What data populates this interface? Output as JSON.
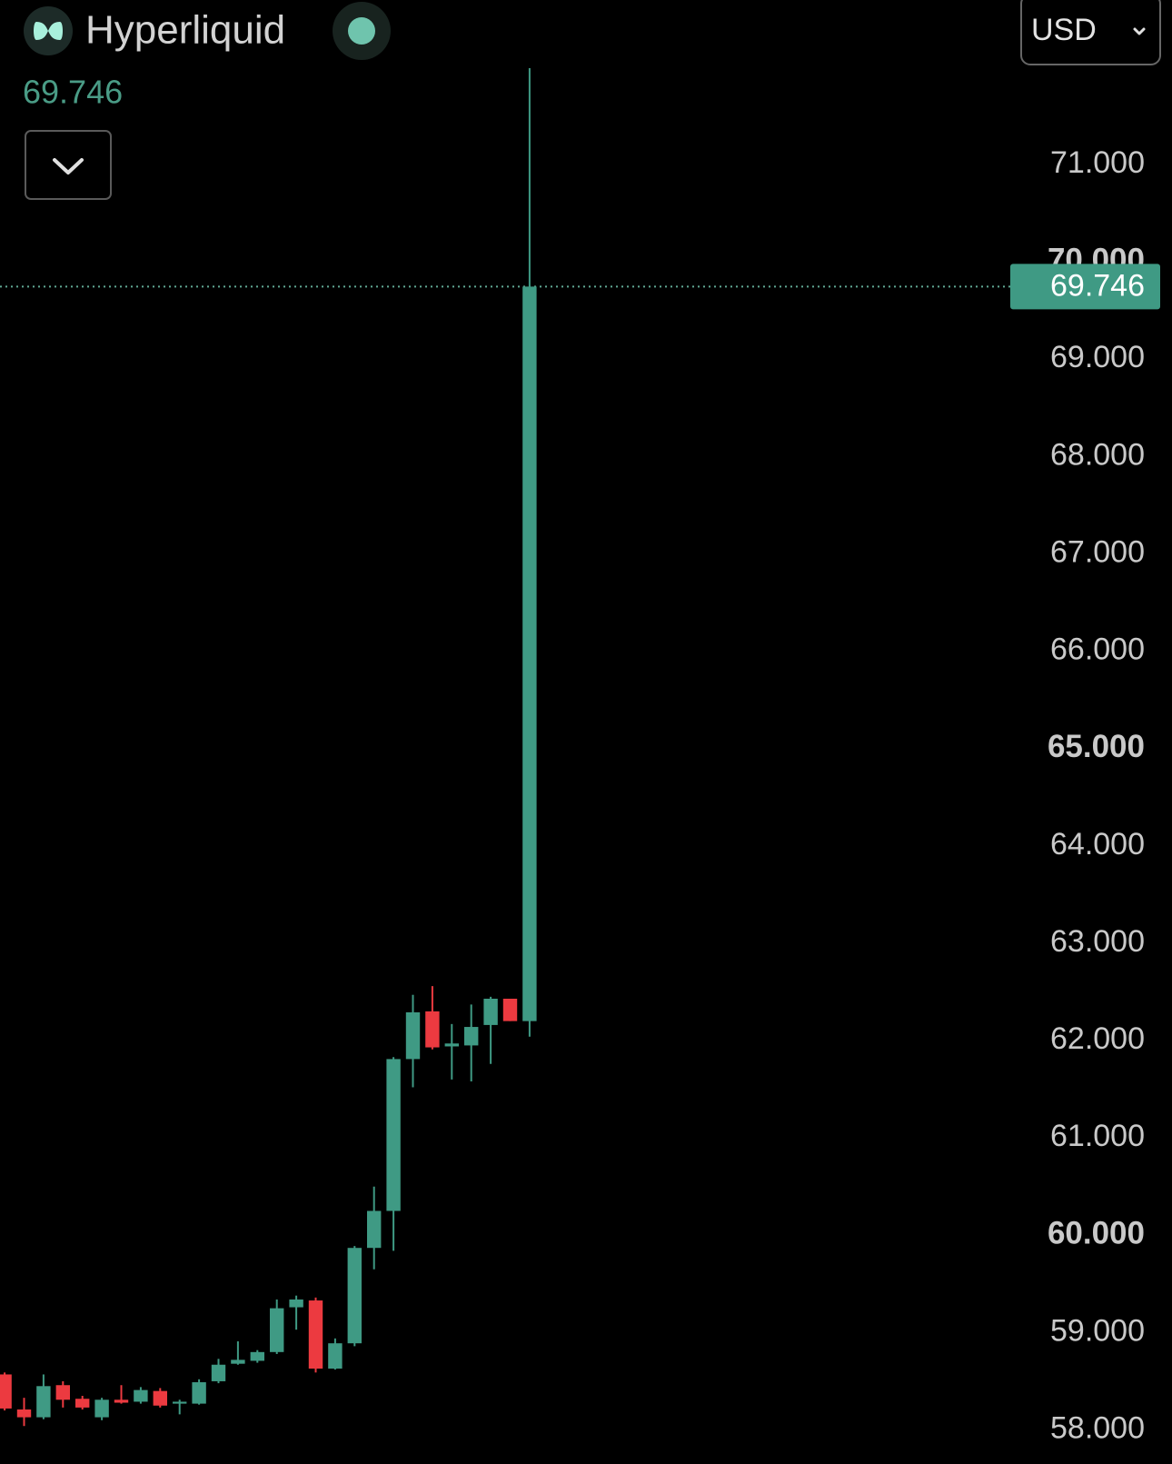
{
  "chart_data": {
    "type": "candlestick",
    "title": "Hyperliquid",
    "currency": "USD",
    "last_price": 69.746,
    "up_color": "#3f9a84",
    "down_color": "#ec3a40",
    "ylim": [
      57.65,
      72.69
    ],
    "yticks": [
      {
        "value": 58,
        "label": "58.000"
      },
      {
        "value": 59,
        "label": "59.000"
      },
      {
        "value": 60,
        "label": "60.000"
      },
      {
        "value": 61,
        "label": "61.000"
      },
      {
        "value": 62,
        "label": "62.000"
      },
      {
        "value": 63,
        "label": "63.000"
      },
      {
        "value": 64,
        "label": "64.000"
      },
      {
        "value": 65,
        "label": "65.000"
      },
      {
        "value": 66,
        "label": "66.000"
      },
      {
        "value": 67,
        "label": "67.000"
      },
      {
        "value": 68,
        "label": "68.000"
      },
      {
        "value": 69,
        "label": "69.000"
      },
      {
        "value": 70,
        "label": "70.000"
      },
      {
        "value": 71,
        "label": "71.000"
      }
    ],
    "open": [
      58.57,
      58.21,
      58.13,
      58.46,
      58.32,
      58.13,
      58.31,
      58.29,
      58.4,
      58.27,
      58.27,
      58.5,
      58.68,
      58.71,
      58.8,
      59.26,
      59.33,
      58.63,
      58.89,
      59.87,
      60.25,
      61.81,
      62.3,
      61.94,
      61.95,
      62.16,
      62.43,
      62.2
    ],
    "high": [
      58.59,
      58.33,
      58.57,
      58.5,
      58.35,
      58.33,
      58.46,
      58.44,
      58.43,
      58.31,
      58.52,
      58.73,
      58.91,
      58.82,
      59.34,
      59.38,
      59.36,
      58.94,
      59.89,
      60.5,
      61.83,
      62.47,
      62.56,
      62.17,
      62.37,
      62.45,
      62.43,
      71.99
    ],
    "low": [
      58.2,
      58.04,
      58.11,
      58.23,
      58.21,
      58.1,
      58.27,
      58.27,
      58.23,
      58.16,
      58.26,
      58.48,
      58.67,
      58.69,
      58.78,
      59.03,
      58.59,
      58.62,
      58.86,
      59.65,
      59.84,
      61.52,
      61.91,
      61.6,
      61.58,
      61.76,
      62.2,
      62.04
    ],
    "close": [
      58.22,
      58.13,
      58.45,
      58.31,
      58.23,
      58.31,
      58.28,
      58.41,
      58.25,
      58.29,
      58.49,
      58.67,
      58.72,
      58.8,
      59.25,
      59.34,
      58.63,
      58.89,
      59.87,
      60.25,
      61.81,
      62.29,
      61.93,
      61.97,
      62.14,
      62.43,
      62.2,
      69.746
    ]
  }
}
